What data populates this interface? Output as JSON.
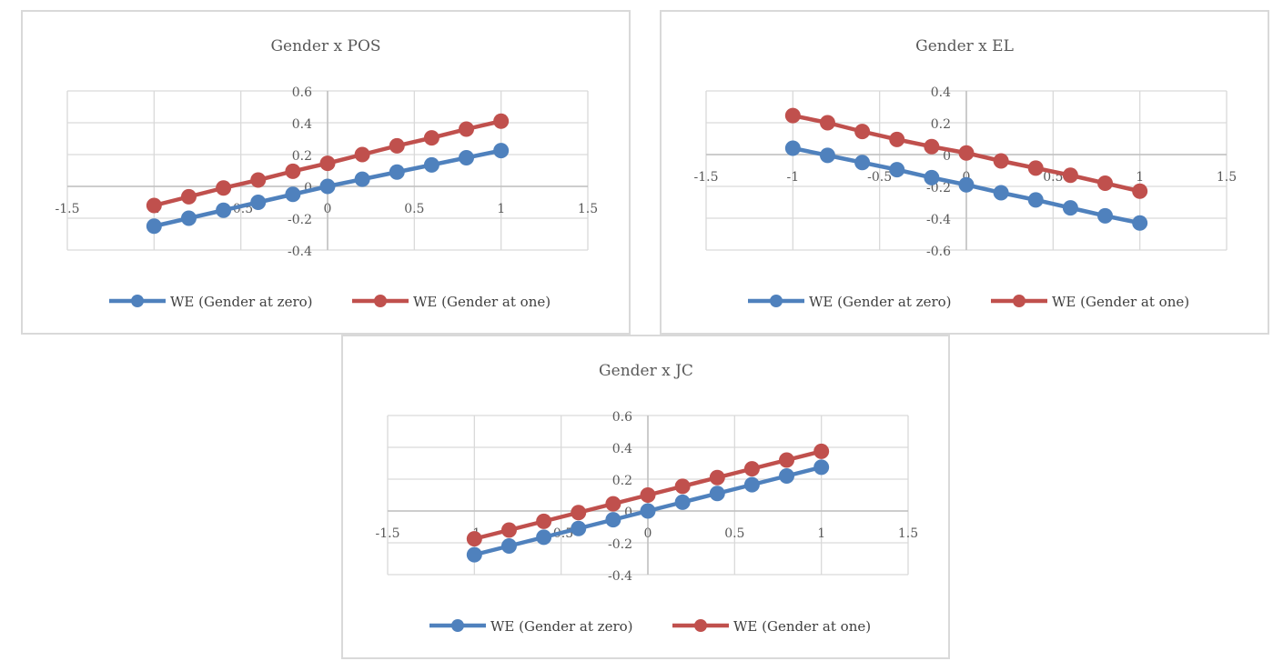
{
  "chart_data": [
    {
      "type": "line",
      "title": "Gender x POS",
      "xlabel": "",
      "ylabel": "",
      "xlim": [
        -1.5,
        1.5
      ],
      "ylim": [
        -0.4,
        0.6
      ],
      "x_ticks": [
        -1.5,
        -1,
        -0.5,
        0,
        0.5,
        1,
        1.5
      ],
      "y_ticks": [
        -0.4,
        -0.2,
        0,
        0.2,
        0.4,
        0.6
      ],
      "grid": true,
      "legend_position": "bottom",
      "x": [
        -1,
        -0.8,
        -0.6,
        -0.4,
        -0.2,
        0,
        0.2,
        0.4,
        0.6,
        0.8,
        1
      ],
      "series": [
        {
          "name": "WE (Gender at zero)",
          "color": "#4f81bd",
          "values": [
            -0.25,
            -0.2,
            -0.15,
            -0.1,
            -0.05,
            0,
            0.045,
            0.09,
            0.135,
            0.18,
            0.225
          ]
        },
        {
          "name": "WE (Gender at one)",
          "color": "#c0504d",
          "values": [
            -0.12,
            -0.065,
            -0.01,
            0.04,
            0.095,
            0.145,
            0.2,
            0.255,
            0.305,
            0.36,
            0.41
          ]
        }
      ]
    },
    {
      "type": "line",
      "title": "Gender x EL",
      "xlabel": "",
      "ylabel": "",
      "xlim": [
        -1.5,
        1.5
      ],
      "ylim": [
        -0.6,
        0.4
      ],
      "x_ticks": [
        -1.5,
        -1,
        -0.5,
        0,
        0.5,
        1,
        1.5
      ],
      "y_ticks": [
        -0.6,
        -0.4,
        -0.2,
        0,
        0.2,
        0.4
      ],
      "grid": true,
      "legend_position": "bottom",
      "x": [
        -1,
        -0.8,
        -0.6,
        -0.4,
        -0.2,
        0,
        0.2,
        0.4,
        0.6,
        0.8,
        1
      ],
      "series": [
        {
          "name": "WE (Gender at zero)",
          "color": "#4f81bd",
          "values": [
            0.04,
            -0.005,
            -0.05,
            -0.095,
            -0.145,
            -0.19,
            -0.24,
            -0.285,
            -0.335,
            -0.385,
            -0.43
          ]
        },
        {
          "name": "WE (Gender at one)",
          "color": "#c0504d",
          "values": [
            0.245,
            0.2,
            0.145,
            0.095,
            0.05,
            0.01,
            -0.04,
            -0.085,
            -0.13,
            -0.18,
            -0.23
          ]
        }
      ]
    },
    {
      "type": "line",
      "title": "Gender x JC",
      "xlabel": "",
      "ylabel": "",
      "xlim": [
        -1.5,
        1.5
      ],
      "ylim": [
        -0.4,
        0.6
      ],
      "x_ticks": [
        -1.5,
        -1,
        -0.5,
        0,
        0.5,
        1,
        1.5
      ],
      "y_ticks": [
        -0.4,
        -0.2,
        0,
        0.2,
        0.4,
        0.6
      ],
      "grid": true,
      "legend_position": "bottom",
      "x": [
        -1,
        -0.8,
        -0.6,
        -0.4,
        -0.2,
        0,
        0.2,
        0.4,
        0.6,
        0.8,
        1
      ],
      "series": [
        {
          "name": "WE (Gender at zero)",
          "color": "#4f81bd",
          "values": [
            -0.275,
            -0.22,
            -0.165,
            -0.11,
            -0.055,
            0,
            0.055,
            0.11,
            0.165,
            0.22,
            0.275
          ]
        },
        {
          "name": "WE (Gender at one)",
          "color": "#c0504d",
          "values": [
            -0.175,
            -0.12,
            -0.065,
            -0.01,
            0.045,
            0.1,
            0.155,
            0.21,
            0.265,
            0.32,
            0.375
          ]
        }
      ]
    }
  ]
}
